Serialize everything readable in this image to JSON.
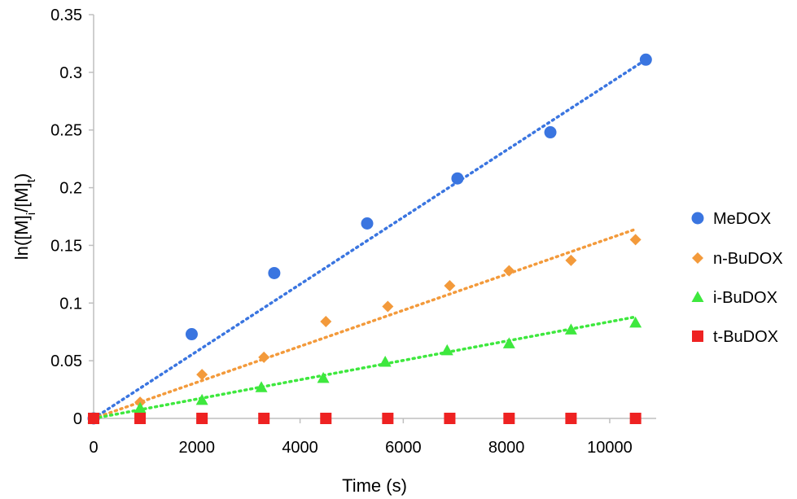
{
  "chart_data": {
    "type": "scatter",
    "xlabel": "Time (s)",
    "ylabel": {
      "parts": [
        {
          "text": "ln([M]",
          "sub": false
        },
        {
          "text": "i",
          "sub": true
        },
        {
          "text": "/[M]",
          "sub": false
        },
        {
          "text": "t",
          "sub": true
        },
        {
          "text": ")",
          "sub": false
        }
      ]
    },
    "xlim": [
      0,
      11000
    ],
    "ylim": [
      0,
      0.35
    ],
    "xticks": [
      0,
      2000,
      4000,
      6000,
      8000,
      10000
    ],
    "xtick_labels": [
      "0",
      "2000",
      "4000",
      "6000",
      "8000",
      "10000"
    ],
    "yticks": [
      0,
      0.05,
      0.1,
      0.15,
      0.2,
      0.25,
      0.3,
      0.35
    ],
    "ytick_labels": [
      "0",
      "0.05",
      "0.1",
      "0.15",
      "0.2",
      "0.25",
      "0.3",
      "0.35"
    ],
    "grid": false,
    "legend_position": "right",
    "series": [
      {
        "name": "MeDOX",
        "marker": "circle",
        "color": "#3a75e0",
        "x": [
          0,
          1900,
          3500,
          5300,
          7050,
          8850,
          10700
        ],
        "y": [
          0,
          0.073,
          0.126,
          0.169,
          0.208,
          0.248,
          0.311
        ],
        "trendline": {
          "x": [
            0,
            10700
          ],
          "y": [
            0,
            0.311
          ]
        }
      },
      {
        "name": "n-BuDOX",
        "marker": "diamond",
        "color": "#f39a3b",
        "x": [
          0,
          900,
          2100,
          3300,
          4500,
          5700,
          6900,
          8050,
          9250,
          10500
        ],
        "y": [
          0,
          0.014,
          0.038,
          0.053,
          0.084,
          0.097,
          0.115,
          0.128,
          0.137,
          0.155
        ],
        "trendline": {
          "x": [
            0,
            10500
          ],
          "y": [
            0,
            0.164
          ]
        }
      },
      {
        "name": "i-BuDOX",
        "marker": "triangle",
        "color": "#3ee83e",
        "x": [
          0,
          900,
          2100,
          3250,
          4450,
          5650,
          6850,
          8050,
          9250,
          10500
        ],
        "y": [
          0,
          0.009,
          0.016,
          0.027,
          0.035,
          0.049,
          0.059,
          0.065,
          0.077,
          0.083
        ],
        "trendline": {
          "x": [
            0,
            10500
          ],
          "y": [
            0,
            0.088
          ]
        }
      },
      {
        "name": "t-BuDOX",
        "marker": "square",
        "color": "#ee2222",
        "x": [
          0,
          900,
          2100,
          3300,
          4500,
          5700,
          6900,
          8050,
          9250,
          10500
        ],
        "y": [
          0,
          0,
          0,
          0,
          0,
          0,
          0,
          0,
          0,
          0
        ],
        "trendline": null
      }
    ]
  }
}
